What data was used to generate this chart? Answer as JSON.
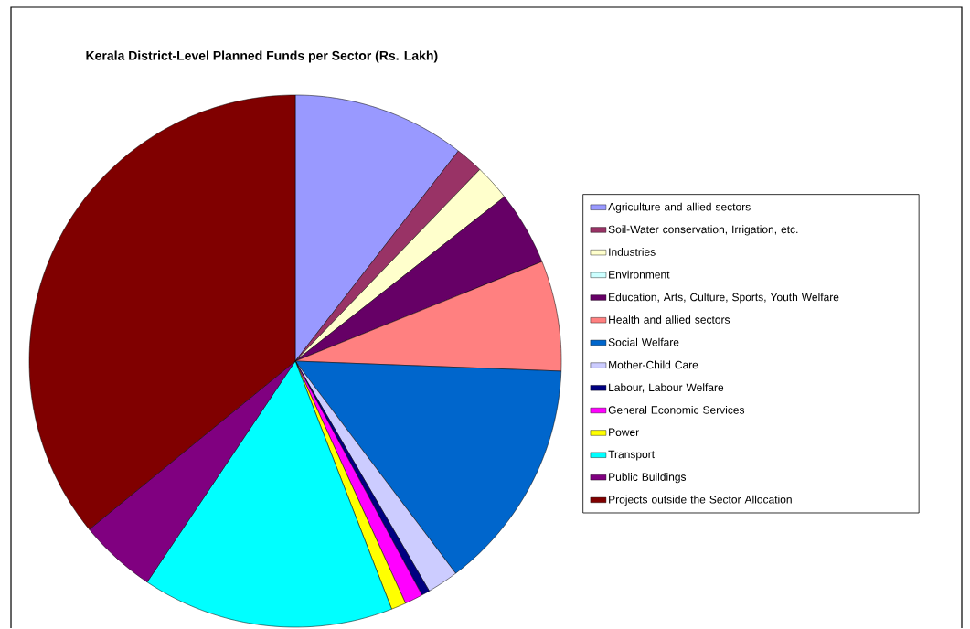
{
  "chart_data": {
    "type": "pie",
    "title": "Kerala District-Level Planned Funds per Sector (Rs. Lakh)",
    "categories": [
      "Agriculture and allied sectors",
      "Soil-Water conservation, Irrigation, etc.",
      "Industries",
      "Environment",
      "Education, Arts, Culture, Sports, Youth Welfare",
      "Health and allied sectors",
      "Social Welfare",
      "Mother-Child Care",
      "Labour, Labour Welfare",
      "General Economic Services",
      "Power",
      "Transport",
      "Public Buildings",
      "Projects outside the Sector Allocation"
    ],
    "values": [
      10.5,
      1.7,
      2.2,
      0,
      4.5,
      6.7,
      14.1,
      1.9,
      0.5,
      1.1,
      0.9,
      15.3,
      4.7,
      35.9
    ],
    "colors": [
      "#9999ff",
      "#993366",
      "#ffffcc",
      "#ccffff",
      "#660066",
      "#ff8080",
      "#0066cc",
      "#ccccff",
      "#000080",
      "#ff00ff",
      "#ffff00",
      "#00ffff",
      "#800080",
      "#800000"
    ],
    "legend": "right"
  }
}
